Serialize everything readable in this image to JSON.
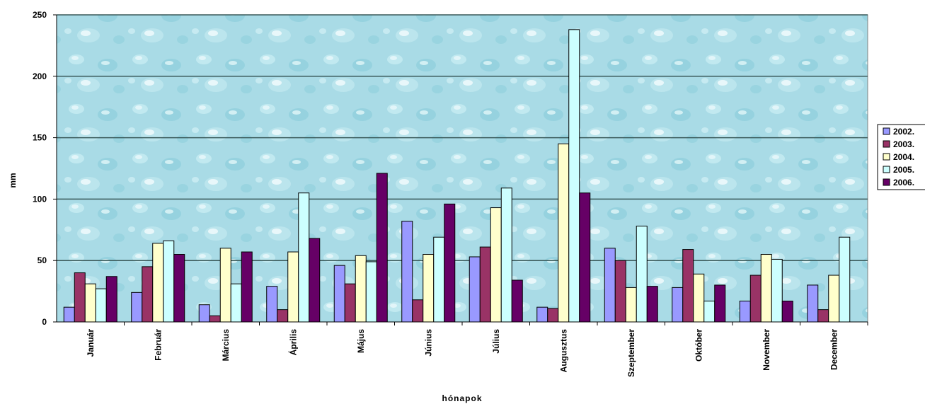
{
  "chart_data": {
    "type": "bar",
    "title": "",
    "xlabel": "hónapok",
    "ylabel": "mm",
    "ylim": [
      0,
      250
    ],
    "yticks": [
      0,
      50,
      100,
      150,
      200,
      250
    ],
    "grid": true,
    "legend_position": "right",
    "categories": [
      "Január",
      "Február",
      "Március",
      "Április",
      "Május",
      "Június",
      "Július",
      "Augusztus",
      "Szeptember",
      "Október",
      "November",
      "December"
    ],
    "series": [
      {
        "name": "2002.",
        "color": "#9999ff",
        "values": [
          12,
          24,
          14,
          29,
          46,
          82,
          53,
          12,
          60,
          28,
          17,
          30
        ]
      },
      {
        "name": "2003.",
        "color": "#993366",
        "values": [
          40,
          45,
          5,
          10,
          31,
          18,
          61,
          11,
          50,
          59,
          38,
          10
        ]
      },
      {
        "name": "2004.",
        "color": "#ffffcc",
        "values": [
          31,
          64,
          60,
          57,
          54,
          55,
          93,
          145,
          28,
          39,
          55,
          38
        ]
      },
      {
        "name": "2005.",
        "color": "#ccffff",
        "values": [
          27,
          66,
          31,
          105,
          49,
          69,
          109,
          238,
          78,
          17,
          51,
          69
        ]
      },
      {
        "name": "2006.",
        "color": "#660066",
        "values": [
          37,
          55,
          57,
          68,
          121,
          96,
          34,
          105,
          29,
          30,
          17,
          0
        ]
      }
    ]
  }
}
